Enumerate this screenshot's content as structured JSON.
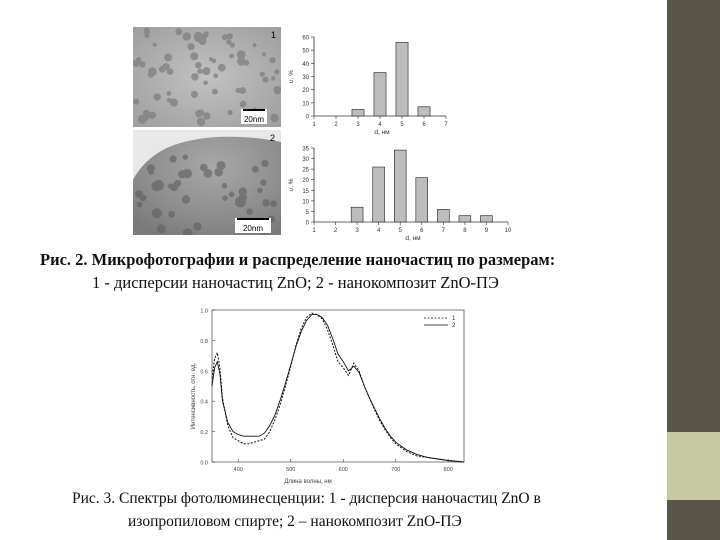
{
  "colors": {
    "right_strip": "#5a5647",
    "strip_accent": "#c7c8a4",
    "bar_fill": "#bdbdbd",
    "micro_bg_1": "#b3b3b3",
    "micro_bg_2": "#8f8f8f"
  },
  "micrographs": [
    {
      "label": "1",
      "scale_text": "20nm"
    },
    {
      "label": "2",
      "scale_text": "20nm"
    }
  ],
  "chart_data": [
    {
      "type": "bar",
      "x": [
        3,
        4,
        5,
        6
      ],
      "values": [
        5,
        33,
        56,
        7
      ],
      "x_ticks": [
        "1",
        "2",
        "3",
        "4",
        "5",
        "6",
        "7"
      ],
      "y_ticks": [
        "0",
        "10",
        "20",
        "30",
        "40",
        "50",
        "60"
      ],
      "xlim": [
        1,
        7
      ],
      "ylim": [
        0,
        60
      ],
      "xlabel": "d, нм",
      "ylabel": "ʋ, %"
    },
    {
      "type": "bar",
      "x": [
        3,
        4,
        5,
        6,
        7,
        8,
        9
      ],
      "values": [
        7,
        26,
        34,
        21,
        6,
        3,
        3
      ],
      "x_ticks": [
        "1",
        "2",
        "3",
        "4",
        "5",
        "6",
        "7",
        "8",
        "9",
        "10"
      ],
      "y_ticks": [
        "0",
        "5",
        "10",
        "15",
        "20",
        "25",
        "30",
        "35"
      ],
      "xlim": [
        1,
        10
      ],
      "ylim": [
        0,
        35
      ],
      "xlabel": "d, нм",
      "ylabel": "ʋ, %"
    },
    {
      "type": "line",
      "xlim": [
        350,
        830
      ],
      "ylim": [
        0,
        1.0
      ],
      "x_ticks": [
        "400",
        "500",
        "600",
        "700",
        "800"
      ],
      "y_ticks": [
        "0.0",
        "0.2",
        "0.4",
        "0.6",
        "0.8",
        "1.0"
      ],
      "xlabel": "Длина волны, нм",
      "ylabel": "Интенсивность, отн. ед.",
      "series": [
        {
          "name": "1",
          "style": "dashed",
          "x": [
            350,
            355,
            360,
            365,
            370,
            380,
            390,
            400,
            410,
            420,
            430,
            440,
            450,
            460,
            470,
            480,
            490,
            500,
            510,
            520,
            530,
            540,
            550,
            560,
            570,
            580,
            590,
            600,
            610,
            620,
            630,
            640,
            650,
            660,
            670,
            680,
            690,
            700,
            720,
            740,
            760,
            780,
            800,
            830
          ],
          "y": [
            0.55,
            0.68,
            0.72,
            0.62,
            0.42,
            0.24,
            0.16,
            0.14,
            0.12,
            0.12,
            0.13,
            0.14,
            0.15,
            0.2,
            0.28,
            0.38,
            0.5,
            0.63,
            0.77,
            0.88,
            0.95,
            0.98,
            0.97,
            0.94,
            0.87,
            0.77,
            0.66,
            0.62,
            0.57,
            0.65,
            0.6,
            0.5,
            0.42,
            0.34,
            0.27,
            0.21,
            0.16,
            0.12,
            0.07,
            0.04,
            0.03,
            0.02,
            0.01,
            0.0
          ]
        },
        {
          "name": "2",
          "style": "solid",
          "x": [
            350,
            355,
            360,
            365,
            370,
            380,
            390,
            400,
            410,
            420,
            430,
            440,
            450,
            460,
            470,
            480,
            490,
            500,
            510,
            520,
            530,
            540,
            550,
            560,
            570,
            580,
            590,
            600,
            610,
            620,
            630,
            640,
            650,
            660,
            670,
            680,
            690,
            700,
            720,
            740,
            760,
            780,
            800,
            830
          ],
          "y": [
            0.5,
            0.62,
            0.66,
            0.58,
            0.4,
            0.26,
            0.2,
            0.18,
            0.17,
            0.17,
            0.17,
            0.17,
            0.19,
            0.24,
            0.31,
            0.41,
            0.52,
            0.64,
            0.76,
            0.86,
            0.93,
            0.97,
            0.97,
            0.95,
            0.9,
            0.81,
            0.71,
            0.66,
            0.6,
            0.63,
            0.59,
            0.5,
            0.42,
            0.35,
            0.28,
            0.22,
            0.17,
            0.13,
            0.08,
            0.05,
            0.03,
            0.02,
            0.01,
            0.0
          ]
        }
      ]
    }
  ],
  "fig2_caption": {
    "line1": "Рис. 2. Микрофотографии и распределение наночастиц по размерам:",
    "line2": "1 - дисперсии наночастиц ZnO; 2 - нанокомпозит ZnO-ПЭ"
  },
  "fig3_caption": {
    "line1": "Рис. 3. Спектры фотолюминесценции: 1 - дисперсия наночастиц ZnO в",
    "line2": "изопропиловом спирте; 2 – нанокомпозит ZnO-ПЭ"
  }
}
